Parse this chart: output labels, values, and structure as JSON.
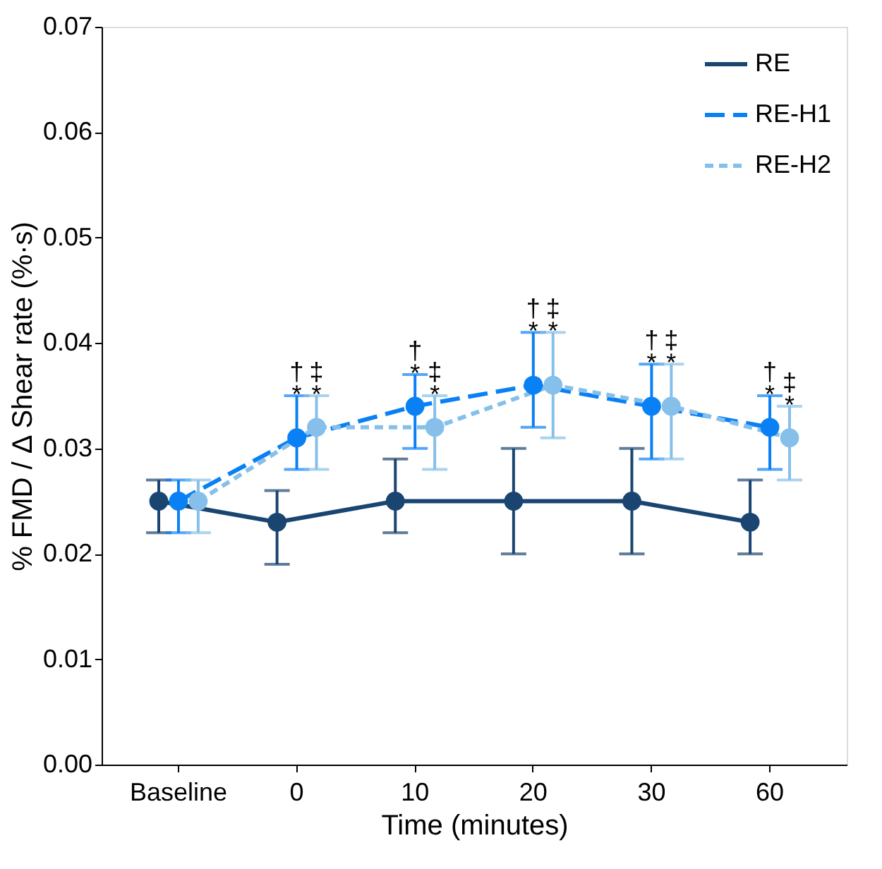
{
  "chart_data": {
    "type": "line",
    "xlabel": "Time (minutes)",
    "ylabel": "% FMD / Δ Shear rate (%·s)",
    "categories": [
      "Baseline",
      "0",
      "10",
      "20",
      "30",
      "60"
    ],
    "ylim": [
      0,
      0.07
    ],
    "yticks": [
      {
        "value": 0,
        "label": "0.00"
      },
      {
        "value": 0.01,
        "label": "0.01"
      },
      {
        "value": 0.02,
        "label": "0.02"
      },
      {
        "value": 0.03,
        "label": "0.03"
      },
      {
        "value": 0.04,
        "label": "0.04"
      },
      {
        "value": 0.05,
        "label": "0.05"
      },
      {
        "value": 0.06,
        "label": "0.06"
      },
      {
        "value": 0.07,
        "label": "0.07"
      }
    ],
    "grid": false,
    "legend": "top right",
    "marker": "circle",
    "series": [
      {
        "name": "RE",
        "color": "#1a4571",
        "line_style": "solid",
        "values": [
          0.025,
          0.023,
          0.025,
          0.025,
          0.025,
          0.023
        ],
        "errors": [
          [
            0.022,
            0.027
          ],
          [
            0.019,
            0.026
          ],
          [
            0.022,
            0.029
          ],
          [
            0.02,
            0.03
          ],
          [
            0.02,
            0.03
          ],
          [
            0.02,
            0.027
          ]
        ]
      },
      {
        "name": "RE-H1",
        "color": "#0a80f5",
        "line_style": "dashed",
        "values": [
          0.025,
          0.031,
          0.034,
          0.036,
          0.034,
          0.032
        ],
        "errors": [
          [
            0.022,
            0.027
          ],
          [
            0.028,
            0.035
          ],
          [
            0.03,
            0.037
          ],
          [
            0.032,
            0.041
          ],
          [
            0.029,
            0.038
          ],
          [
            0.028,
            0.035
          ]
        ]
      },
      {
        "name": "RE-H2",
        "color": "#86c0ea",
        "line_style": "dotted",
        "values": [
          0.025,
          0.032,
          0.032,
          0.036,
          0.034,
          0.031
        ],
        "errors": [
          [
            0.022,
            0.027
          ],
          [
            0.028,
            0.035
          ],
          [
            0.028,
            0.035
          ],
          [
            0.031,
            0.041
          ],
          [
            0.029,
            0.038
          ],
          [
            0.027,
            0.034
          ]
        ]
      }
    ],
    "annotations": [
      "†\n*",
      "‡\n*",
      "†\n*",
      "‡\n*",
      "†\n*",
      "‡\n*",
      "†\n*",
      "‡\n*",
      "†\n*",
      "‡\n*"
    ]
  }
}
